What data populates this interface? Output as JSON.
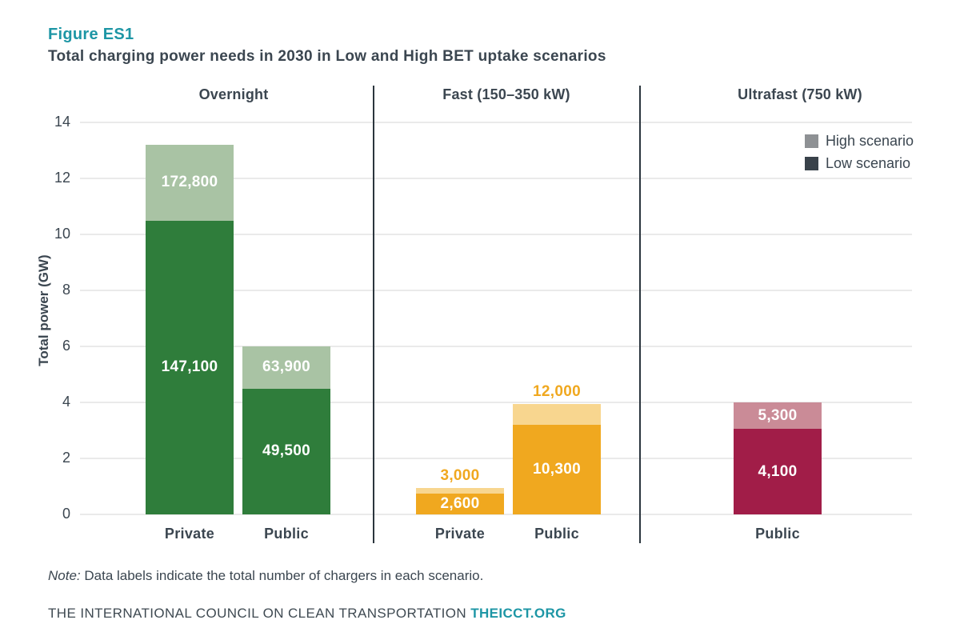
{
  "header": {
    "figure_label": "Figure ES1",
    "title": "Total charging power needs in 2030 in Low and High BET uptake scenarios"
  },
  "chart_data": {
    "type": "bar",
    "stacked": true,
    "ylabel": "Total power (GW)",
    "ylim": [
      0,
      14
    ],
    "yticks": [
      0,
      2,
      4,
      6,
      8,
      10,
      12,
      14
    ],
    "grid": "horizontal",
    "legend_position": "top-right",
    "legend": [
      {
        "label": "High scenario",
        "color": "#8e9194"
      },
      {
        "label": "Low scenario",
        "color": "#39424a"
      }
    ],
    "panels": [
      {
        "header": "Overnight",
        "low_color": "#2f7d3b",
        "high_color": "#a9c3a4",
        "bars": [
          {
            "category": "Private",
            "low_gw": 10.5,
            "high_gw": 13.2,
            "low_label": "147,100",
            "high_label": "172,800",
            "high_label_pos": "inside"
          },
          {
            "category": "Public",
            "low_gw": 4.5,
            "high_gw": 6.0,
            "low_label": "49,500",
            "high_label": "63,900",
            "high_label_pos": "inside"
          }
        ]
      },
      {
        "header": "Fast (150–350 kW)",
        "low_color": "#f0a81f",
        "high_color": "#f8d68f",
        "bars": [
          {
            "category": "Private",
            "low_gw": 0.75,
            "high_gw": 0.95,
            "low_label": "2,600",
            "high_label": "3,000",
            "high_label_pos": "above"
          },
          {
            "category": "Public",
            "low_gw": 3.2,
            "high_gw": 3.95,
            "low_label": "10,300",
            "high_label": "12,000",
            "high_label_pos": "above"
          }
        ]
      },
      {
        "header": "Ultrafast (750 kW)",
        "low_color": "#a11d48",
        "high_color": "#ca8b97",
        "bars": [
          {
            "category": "Public",
            "low_gw": 3.05,
            "high_gw": 4.0,
            "low_label": "4,100",
            "high_label": "5,300",
            "high_label_pos": "inside"
          }
        ]
      }
    ]
  },
  "note": {
    "prefix": "Note:",
    "text": " Data labels indicate the total number of chargers in each scenario."
  },
  "footer": {
    "text": "THE INTERNATIONAL COUNCIL ON CLEAN TRANSPORTATION ",
    "link": "THEICCT.ORG"
  }
}
